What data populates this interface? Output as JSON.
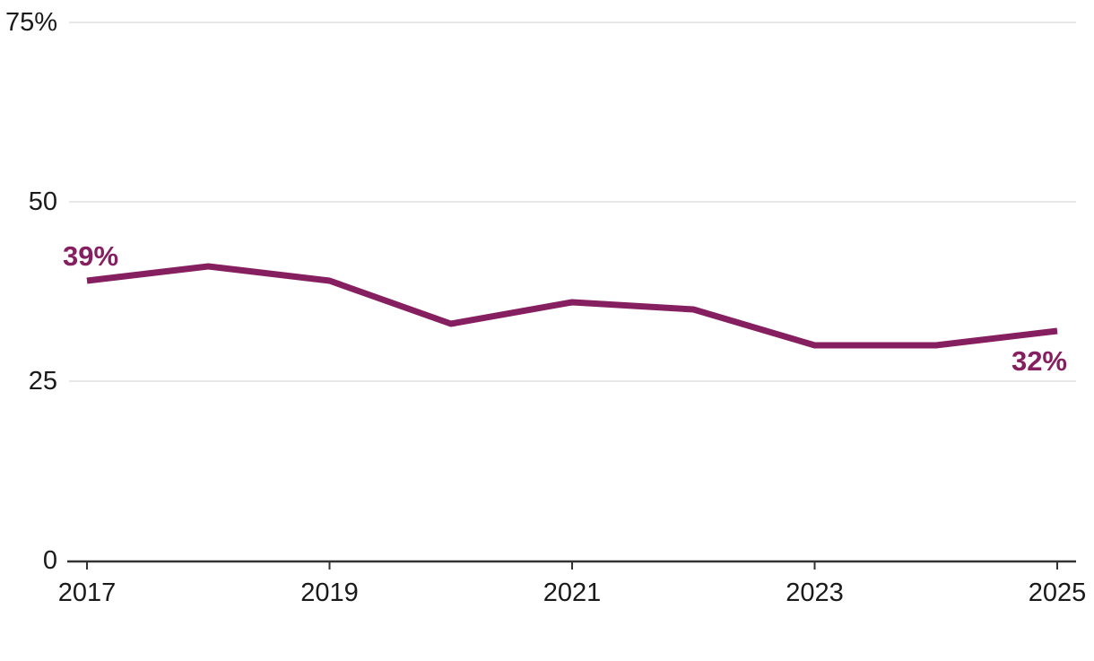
{
  "chart_data": {
    "type": "line",
    "title": "",
    "xlabel": "",
    "ylabel": "",
    "x": [
      2017,
      2018,
      2019,
      2020,
      2021,
      2022,
      2023,
      2024,
      2025
    ],
    "series": [
      {
        "name": "percent",
        "values": [
          39,
          41,
          39,
          33,
          36,
          35,
          30,
          30,
          32
        ]
      }
    ],
    "ylim": [
      0,
      75
    ],
    "y_ticks": [
      {
        "value": 75,
        "label": "75%"
      },
      {
        "value": 50,
        "label": "50"
      },
      {
        "value": 25,
        "label": "25"
      },
      {
        "value": 0,
        "label": "0"
      }
    ],
    "x_ticks": [
      {
        "value": 2017,
        "label": "2017"
      },
      {
        "value": 2019,
        "label": "2019"
      },
      {
        "value": 2021,
        "label": "2021"
      },
      {
        "value": 2023,
        "label": "2023"
      },
      {
        "value": 2025,
        "label": "2025"
      }
    ],
    "point_labels": {
      "first": "39%",
      "last": "32%"
    },
    "grid": "horizontal-only",
    "legend": "none",
    "colors": {
      "line": "#861F60",
      "point_label": "#861F60",
      "gridline": "#E7E7E7",
      "axis": "#333333",
      "tick_label": "#1A1A1A",
      "background": "#FFFFFF"
    }
  }
}
